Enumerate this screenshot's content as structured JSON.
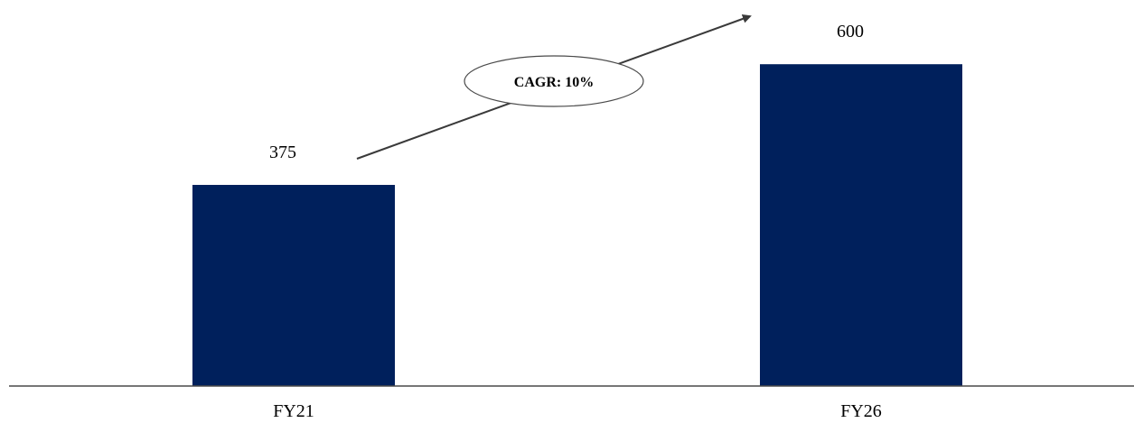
{
  "chart_data": {
    "type": "bar",
    "categories": [
      "FY21",
      "FY26"
    ],
    "values": [
      375,
      600
    ],
    "data_labels": [
      "375",
      "600"
    ],
    "ylim": [
      0,
      750
    ],
    "grid": false,
    "colors": {
      "bar": "#00205C",
      "axis": "#4a4a4a",
      "arrow": "#3a3a3a"
    },
    "annotations": [
      {
        "text": "CAGR: 10%",
        "shape": "ellipse-callout-on-arrow"
      }
    ]
  }
}
